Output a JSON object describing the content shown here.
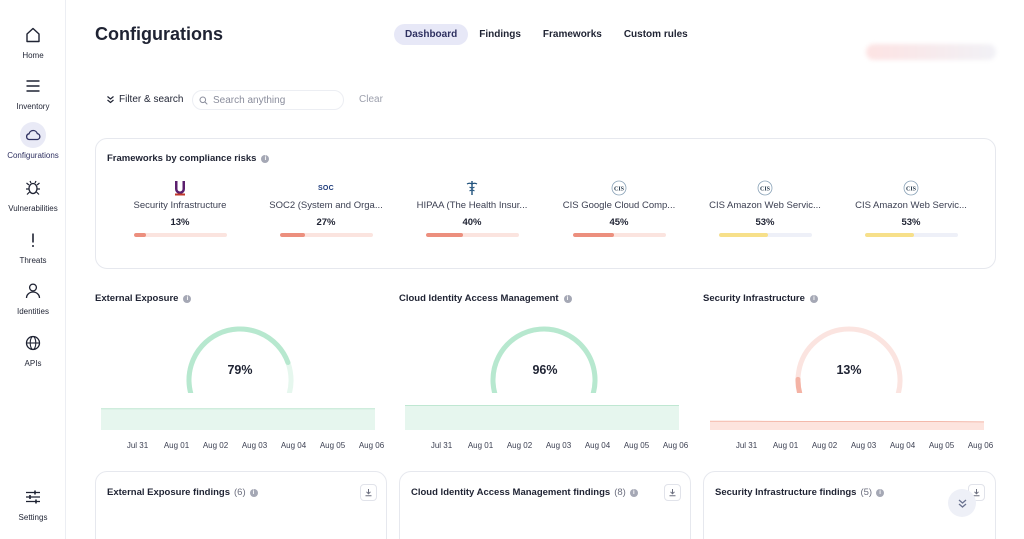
{
  "sidebar": {
    "items": [
      {
        "label": "Home",
        "icon": "home-icon"
      },
      {
        "label": "Inventory",
        "icon": "menu-icon"
      },
      {
        "label": "Configurations",
        "icon": "cloud-icon",
        "active": true
      },
      {
        "label": "Vulnerabilities",
        "icon": "bug-icon"
      },
      {
        "label": "Threats",
        "icon": "exclamation-icon"
      },
      {
        "label": "Identities",
        "icon": "user-icon"
      },
      {
        "label": "APIs",
        "icon": "globe-icon"
      },
      {
        "label": "Settings",
        "icon": "sliders-icon"
      }
    ]
  },
  "header": {
    "title": "Configurations",
    "tabs": [
      {
        "label": "Dashboard",
        "active": true
      },
      {
        "label": "Findings"
      },
      {
        "label": "Frameworks"
      },
      {
        "label": "Custom rules"
      }
    ]
  },
  "filter": {
    "filter_label": "Filter & search",
    "search_placeholder": "Search anything",
    "clear_label": "Clear"
  },
  "frameworks": {
    "title": "Frameworks by compliance risks",
    "items": [
      {
        "name": "Security Infrastructure",
        "pct_text": "13%",
        "pct": 0.13,
        "logo": "U",
        "bar_color": "#ec8f7e",
        "track_color": "#fbe4df"
      },
      {
        "name": "SOC2 (System and Orga...",
        "pct_text": "27%",
        "pct": 0.27,
        "logo": "SOC",
        "bar_color": "#ec8f7e",
        "track_color": "#fbe4df"
      },
      {
        "name": "HIPAA (The Health Insur...",
        "pct_text": "40%",
        "pct": 0.4,
        "logo": "caduceus",
        "bar_color": "#ec8f7e",
        "track_color": "#fbe4df"
      },
      {
        "name": "CIS Google Cloud Comp...",
        "pct_text": "45%",
        "pct": 0.45,
        "logo": "CIS",
        "bar_color": "#ec8f7e",
        "track_color": "#fbe4df"
      },
      {
        "name": "CIS Amazon Web Servic...",
        "pct_text": "53%",
        "pct": 0.53,
        "logo": "CIS",
        "bar_color": "#f7e08a",
        "track_color": "#eef0f8"
      },
      {
        "name": "CIS Amazon Web Servic...",
        "pct_text": "53%",
        "pct": 0.53,
        "logo": "CIS",
        "bar_color": "#f7e08a",
        "track_color": "#eef0f8"
      }
    ]
  },
  "panels": [
    {
      "title": "External Exposure",
      "pct_text": "79%",
      "pct": 0.79,
      "color": "#b7e8cf",
      "area_fill": "#e6f6ee",
      "area_line": "#bfe7d2",
      "chart_data": {
        "type": "area",
        "x": [
          "Jul 31",
          "Aug 01",
          "Aug 02",
          "Aug 03",
          "Aug 04",
          "Aug 05",
          "Aug 06"
        ],
        "values": [
          79,
          79,
          79,
          79,
          79,
          79,
          79
        ]
      }
    },
    {
      "title": "Cloud Identity Access Management",
      "pct_text": "96%",
      "pct": 0.96,
      "color": "#b7e8cf",
      "area_fill": "#e6f6ee",
      "area_line": "#bfe7d2",
      "chart_data": {
        "type": "area",
        "x": [
          "Jul 31",
          "Aug 01",
          "Aug 02",
          "Aug 03",
          "Aug 04",
          "Aug 05",
          "Aug 06"
        ],
        "values": [
          96,
          96,
          96,
          96,
          96,
          96,
          96
        ]
      }
    },
    {
      "title": "Security Infrastructure",
      "pct_text": "13%",
      "pct": 0.13,
      "color": "#f4b3a5",
      "area_fill": "#fde4de",
      "area_line": "#f3b9ab",
      "chart_data": {
        "type": "area",
        "x": [
          "Jul 31",
          "Aug 01",
          "Aug 02",
          "Aug 03",
          "Aug 04",
          "Aug 05",
          "Aug 06"
        ],
        "values": [
          14,
          14,
          13,
          13,
          13,
          13,
          11
        ]
      }
    }
  ],
  "findings": [
    {
      "title": "External Exposure findings",
      "count": "(6)"
    },
    {
      "title": "Cloud Identity Access Management findings",
      "count": "(8)"
    },
    {
      "title": "Security Infrastructure findings",
      "count": "(5)"
    }
  ]
}
